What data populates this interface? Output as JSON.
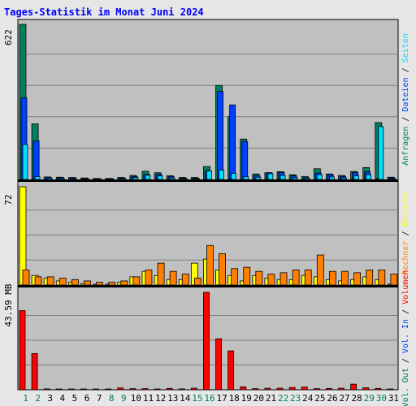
{
  "chart_data": {
    "type": "bar",
    "title": "Tages-Statistik im Monat Juni 2024",
    "days": [
      "1",
      "2",
      "3",
      "4",
      "5",
      "6",
      "7",
      "8",
      "9",
      "10",
      "11",
      "12",
      "13",
      "14",
      "15",
      "16",
      "17",
      "18",
      "19",
      "20",
      "21",
      "22",
      "23",
      "24",
      "25",
      "26",
      "27",
      "28",
      "29",
      "30",
      "31"
    ],
    "weekend_days": [
      "1",
      "2",
      "8",
      "9",
      "15",
      "16",
      "22",
      "23",
      "29",
      "30"
    ],
    "panels": [
      {
        "name": "hits",
        "ymax_label": "622",
        "ymax": 622,
        "right_label_parts": [
          {
            "text": "Anfragen",
            "color": "#00805c"
          },
          {
            "text": "Dateien",
            "color": "#0040ff"
          },
          {
            "text": "Seiten",
            "color": "#00e0ff"
          }
        ],
        "series": [
          {
            "name": "Anfragen",
            "color": "#00805c",
            "values": [
              622,
              223,
              10,
              9,
              8,
              6,
              4,
              4,
              8,
              16,
              33,
              27,
              15,
              8,
              8,
              52,
              377,
              252,
              162,
              22,
              27,
              31,
              19,
              12,
              43,
              22,
              16,
              32,
              48,
              228,
              9
            ]
          },
          {
            "name": "Dateien",
            "color": "#0040ff",
            "values": [
              327,
              155,
              9,
              8,
              7,
              5,
              3,
              4,
              6,
              12,
              20,
              20,
              12,
              6,
              5,
              35,
              353,
              299,
              152,
              16,
              27,
              28,
              15,
              7,
              26,
              18,
              12,
              28,
              31,
              2,
              7
            ]
          },
          {
            "name": "Seiten",
            "color": "#00e0ff",
            "values": [
              140,
              11,
              5,
              4,
              3,
              3,
              2,
              3,
              4,
              8,
              17,
              14,
              6,
              3,
              3,
              34,
              38,
              24,
              11,
              9,
              23,
              16,
              7,
              5,
              19,
              10,
              6,
              15,
              19,
              212,
              0
            ]
          }
        ]
      },
      {
        "name": "visits",
        "ymax_label": "72",
        "ymax": 72,
        "right_label_parts": [
          {
            "text": "Rechner",
            "color": "#ff8000"
          },
          {
            "text": "Besuche",
            "color": "#ffff00"
          }
        ],
        "series": [
          {
            "name": "Besuche",
            "color": "#ffff00",
            "values": [
              72,
              7,
              5,
              3,
              2,
              1,
              0,
              0,
              2,
              6,
              10,
              7,
              4,
              4,
              16,
              19,
              11,
              7,
              3,
              7,
              5,
              4,
              4,
              7,
              6,
              4,
              3,
              4,
              6,
              4,
              0
            ]
          },
          {
            "name": "Rechner",
            "color": "#ff8000",
            "values": [
              11,
              6,
              6,
              5,
              4,
              3,
              2,
              2,
              3,
              6,
              11,
              16,
              10,
              8,
              5,
              29,
              23,
              12,
              13,
              10,
              8,
              9,
              11,
              11,
              22,
              10,
              10,
              9,
              11,
              11,
              8
            ]
          }
        ]
      },
      {
        "name": "volume",
        "ymax_label": "43.59 MB",
        "ymax": 43.59,
        "right_label_parts": [
          {
            "text": "Vol. Out",
            "color": "#00805c"
          },
          {
            "text": "Vol. In",
            "color": "#0040ff"
          },
          {
            "text": "Volumen",
            "color": "#ff0000"
          }
        ],
        "series": [
          {
            "name": "Volumen",
            "color": "#ff0000",
            "values": [
              35.4,
              16.2,
              0.4,
              0.3,
              0.3,
              0.2,
              0.1,
              0.2,
              0.8,
              0.5,
              0.5,
              0.3,
              0.6,
              0.4,
              0.7,
              43.59,
              22.8,
              17.4,
              1.3,
              0.5,
              0.7,
              0.7,
              1.0,
              1.2,
              0.5,
              0.6,
              0.7,
              2.5,
              0.9,
              0.6,
              0.1
            ]
          }
        ]
      }
    ]
  },
  "colors": {
    "background": "#e6e6e6",
    "panel": "#c0c0c0",
    "gridline": "#808080",
    "title": "#0000ff",
    "weekend_label": "#00805c",
    "weekday_label": "#000000",
    "separator": "#000000"
  }
}
